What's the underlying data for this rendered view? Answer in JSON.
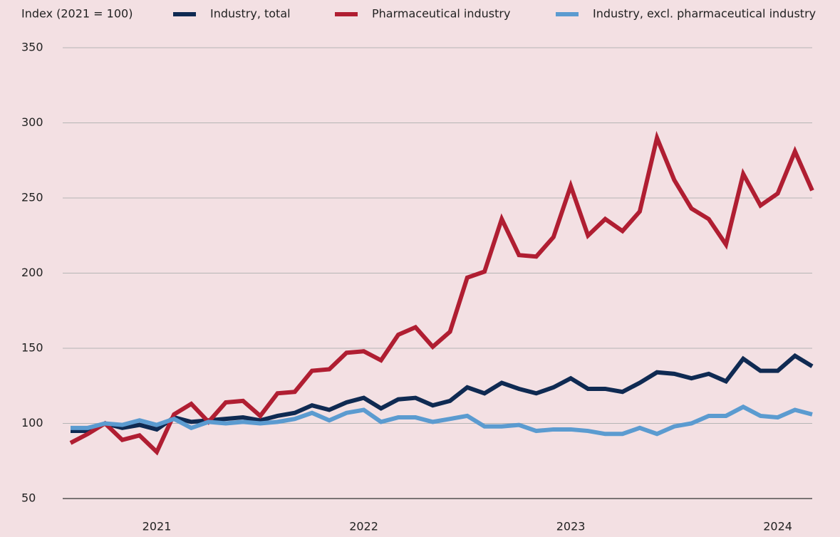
{
  "chart_data": {
    "type": "line",
    "y_axis_label": "Index (2021 = 100)",
    "categories": [
      null,
      null,
      null,
      null,
      null,
      "2021",
      null,
      null,
      null,
      null,
      null,
      null,
      null,
      null,
      null,
      null,
      null,
      "2022",
      null,
      null,
      null,
      null,
      null,
      null,
      null,
      null,
      null,
      null,
      null,
      "2023",
      null,
      null,
      null,
      null,
      null,
      null,
      null,
      null,
      null,
      null,
      null,
      "2024",
      null,
      null
    ],
    "series": [
      {
        "name": "Industry, total",
        "color": "#0f2a52",
        "values": [
          95,
          95,
          100,
          97,
          99,
          96,
          104,
          101,
          102,
          103,
          104,
          102,
          105,
          107,
          112,
          109,
          114,
          117,
          110,
          116,
          117,
          112,
          115,
          124,
          120,
          127,
          123,
          120,
          124,
          130,
          123,
          123,
          121,
          127,
          134,
          133,
          130,
          133,
          128,
          143,
          135,
          135,
          145,
          138
        ]
      },
      {
        "name": "Pharmaceutical industry",
        "color": "#b01e32",
        "values": [
          87,
          93,
          100,
          89,
          92,
          81,
          106,
          113,
          101,
          114,
          115,
          105,
          120,
          121,
          135,
          136,
          147,
          148,
          142,
          159,
          164,
          151,
          161,
          197,
          201,
          236,
          212,
          211,
          224,
          258,
          225,
          236,
          228,
          241,
          290,
          262,
          243,
          236,
          219,
          266,
          245,
          253,
          281,
          255
        ]
      },
      {
        "name": "Industry, excl. pharmaceutical industry",
        "color": "#5b9bd0",
        "values": [
          97,
          97,
          100,
          99,
          102,
          99,
          103,
          97,
          101,
          100,
          101,
          100,
          101,
          103,
          107,
          102,
          107,
          109,
          101,
          104,
          104,
          101,
          103,
          105,
          98,
          98,
          99,
          95,
          96,
          96,
          95,
          93,
          93,
          97,
          93,
          98,
          100,
          105,
          105,
          111,
          105,
          104,
          109,
          106
        ]
      }
    ],
    "ylim": [
      50,
      350
    ],
    "yticks": [
      50,
      100,
      150,
      200,
      250,
      300,
      350
    ],
    "grid": true
  }
}
